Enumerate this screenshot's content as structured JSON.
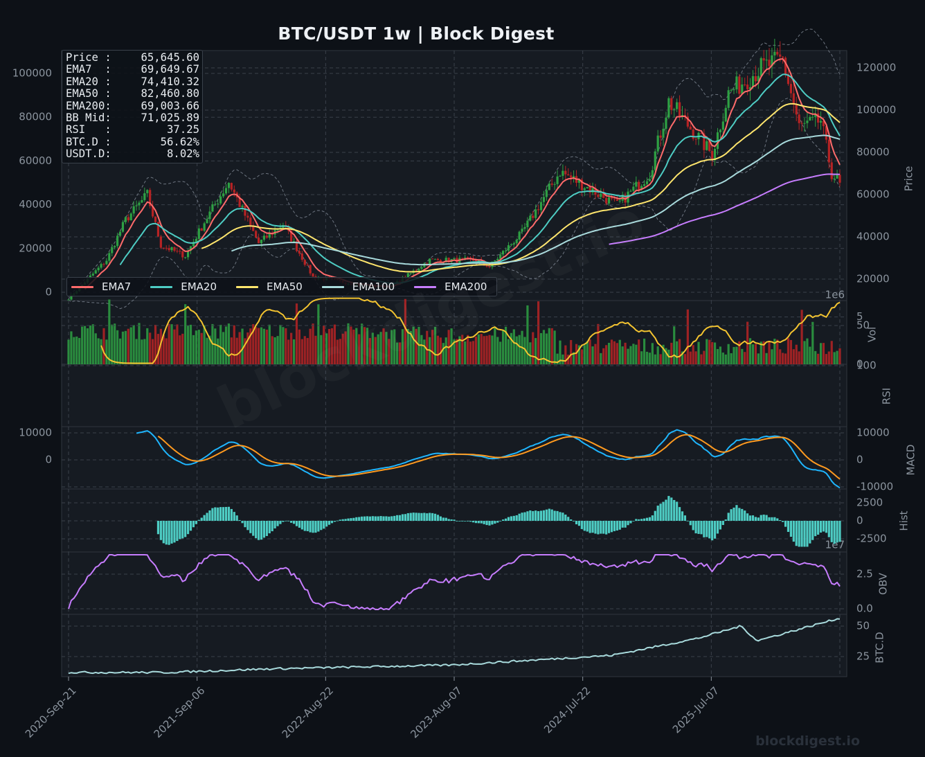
{
  "title": "BTC/USDT  1w  |  Block Digest",
  "colors": {
    "background": "#0d1117",
    "panel": "#161b22",
    "grid": "#3a414b",
    "tick_text": "#8b949e",
    "up": "#2ea043",
    "down": "#b62324",
    "ema7": "#ff6b6b",
    "ema20": "#4ecdc4",
    "ema50": "#ffe66d",
    "ema100": "#a8dadc",
    "ema200": "#c77dff",
    "rsi": "#f4c430",
    "macd": "#1fb6ff",
    "signal": "#ff9a1f",
    "hist": "#4ecdc4",
    "obv": "#c77dff",
    "btcd": "#a8dadc"
  },
  "info_box": [
    {
      "label": "Price :",
      "value": "65,645.60"
    },
    {
      "label": "EMA7  :",
      "value": "69,649.67"
    },
    {
      "label": "EMA20 :",
      "value": "74,410.32"
    },
    {
      "label": "EMA50 :",
      "value": "82,460.80"
    },
    {
      "label": "EMA200:",
      "value": "69,003.66"
    },
    {
      "label": "BB Mid:",
      "value": "71,025.89"
    },
    {
      "label": "RSI   :",
      "value": "37.25"
    },
    {
      "label": "BTC.D :",
      "value": "56.62%"
    },
    {
      "label": "USDT.D:",
      "value": "8.02%"
    }
  ],
  "legend": [
    "EMA7",
    "EMA20",
    "EMA50",
    "EMA100",
    "EMA200"
  ],
  "watermark": "blockdigest.io",
  "footer_mark": "blockdigest.io",
  "chart_data": {
    "type": "line",
    "x_ticks": [
      "2020-Sep-21",
      "2021-Sep-06",
      "2022-Aug-22",
      "2023-Aug-07",
      "2024-Jul-22",
      "2025-Jul-07"
    ],
    "x_range": [
      "2020-09-21",
      "2026-03-02"
    ],
    "panels": {
      "price": {
        "ylabel": "Price",
        "left_ticks": [
          0,
          20000,
          40000,
          60000,
          80000,
          100000
        ],
        "right_ticks": [
          20000,
          40000,
          60000,
          80000,
          100000,
          120000
        ],
        "offset_label": "1e6",
        "ylim": [
          -2000,
          110000
        ],
        "close_keypoints": [
          [
            "2020-09-21",
            10800
          ],
          [
            "2020-12-28",
            29000
          ],
          [
            "2021-02-15",
            48000
          ],
          [
            "2021-04-12",
            60000
          ],
          [
            "2021-05-17",
            36000
          ],
          [
            "2021-07-19",
            31000
          ],
          [
            "2021-09-06",
            47000
          ],
          [
            "2021-11-08",
            66000
          ],
          [
            "2022-01-24",
            37000
          ],
          [
            "2022-03-28",
            46000
          ],
          [
            "2022-06-13",
            21000
          ],
          [
            "2022-11-07",
            16500
          ],
          [
            "2023-01-02",
            16600
          ],
          [
            "2023-04-10",
            29000
          ],
          [
            "2023-08-07",
            29000
          ],
          [
            "2023-09-11",
            26000
          ],
          [
            "2023-12-04",
            42000
          ],
          [
            "2024-03-11",
            71000
          ],
          [
            "2024-08-05",
            55000
          ],
          [
            "2024-10-28",
            70000
          ],
          [
            "2024-12-16",
            104000
          ],
          [
            "2025-04-07",
            79000
          ],
          [
            "2025-05-19",
            108000
          ],
          [
            "2025-08-11",
            120000
          ],
          [
            "2025-10-06",
            124000
          ],
          [
            "2025-11-17",
            92000
          ],
          [
            "2026-01-12",
            95000
          ],
          [
            "2026-02-09",
            70000
          ],
          [
            "2026-03-02",
            65645
          ]
        ]
      },
      "volume": {
        "ylabel": "Vol",
        "ticks": [
          0,
          5
        ],
        "offset_label": "1e7"
      },
      "rsi": {
        "ylabel": "RSI",
        "ticks": [
          50,
          100
        ],
        "ylim": [
          0,
          100
        ]
      },
      "macd": {
        "ylabel": "MACD",
        "left_ticks": [
          0,
          10000
        ],
        "right_ticks": [
          -10000,
          0,
          10000
        ]
      },
      "hist": {
        "ylabel": "Hist",
        "ticks": [
          -2500,
          0,
          2500
        ],
        "offset_label": "1e7"
      },
      "obv": {
        "ylabel": "OBV",
        "ticks": [
          "0.0",
          "2.5"
        ]
      },
      "btcd": {
        "ylabel": "BTC.D",
        "ticks": [
          25,
          50
        ]
      }
    },
    "series": [
      {
        "name": "EMA7"
      },
      {
        "name": "EMA20"
      },
      {
        "name": "EMA50"
      },
      {
        "name": "EMA100"
      },
      {
        "name": "EMA200"
      }
    ],
    "grid": true,
    "legend_position": "bottom-left of price panel"
  }
}
